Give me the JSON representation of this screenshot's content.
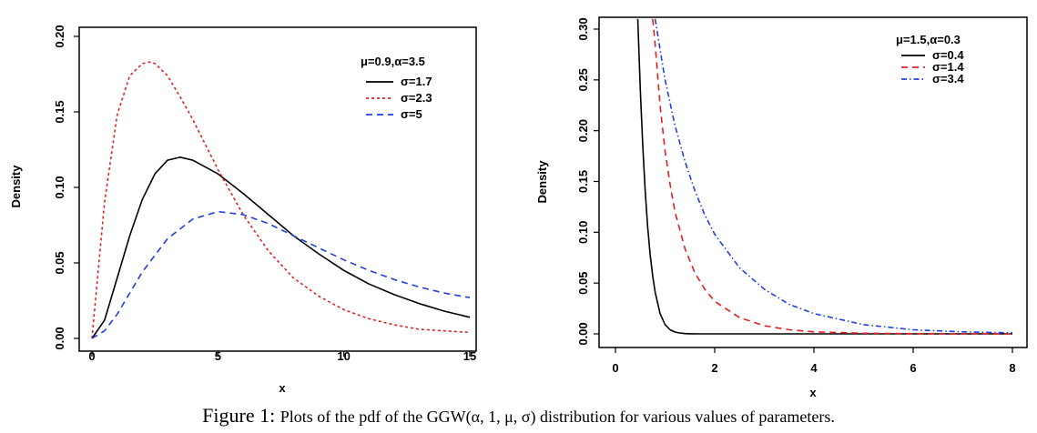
{
  "caption": {
    "prefix": "Figure 1:",
    "text": "Plots of the pdf of the GGW(α, 1, μ, σ) distribution for various values of parameters."
  },
  "chart_data": [
    {
      "type": "line",
      "xlabel": "x",
      "ylabel": "Density",
      "xlim": [
        0,
        15
      ],
      "ylim": [
        0,
        0.2
      ],
      "xticks": [
        "0",
        "5",
        "10",
        "15"
      ],
      "yticks": [
        "0.00",
        "0.05",
        "0.10",
        "0.15",
        "0.20"
      ],
      "legend_title": "μ=0.9,α=3.5",
      "legend_position": "top-right",
      "series": [
        {
          "name": "σ=1.7",
          "color": "#000000",
          "style": "solid",
          "x": [
            0,
            0.5,
            1,
            1.5,
            2,
            2.5,
            3,
            3.5,
            4,
            5,
            6,
            7,
            8,
            9,
            10,
            11,
            12,
            13,
            14,
            15
          ],
          "y": [
            0,
            0.012,
            0.04,
            0.068,
            0.092,
            0.109,
            0.118,
            0.12,
            0.118,
            0.109,
            0.096,
            0.082,
            0.068,
            0.056,
            0.045,
            0.036,
            0.029,
            0.023,
            0.018,
            0.014
          ]
        },
        {
          "name": "σ=2.3",
          "color": "#e02020",
          "style": "dotted",
          "x": [
            0,
            0.5,
            1,
            1.5,
            2,
            2.3,
            2.5,
            3,
            3.5,
            4,
            5,
            6,
            7,
            8,
            9,
            10,
            11,
            12,
            13,
            14,
            15
          ],
          "y": [
            0,
            0.09,
            0.148,
            0.174,
            0.182,
            0.183,
            0.182,
            0.174,
            0.16,
            0.145,
            0.112,
            0.082,
            0.058,
            0.04,
            0.028,
            0.019,
            0.013,
            0.009,
            0.006,
            0.005,
            0.004
          ]
        },
        {
          "name": "σ=5",
          "color": "#2040e0",
          "style": "dashed",
          "x": [
            0,
            0.5,
            1,
            1.5,
            2,
            3,
            4,
            5,
            6,
            7,
            8,
            9,
            10,
            11,
            12,
            13,
            14,
            15
          ],
          "y": [
            0,
            0.005,
            0.016,
            0.03,
            0.044,
            0.066,
            0.079,
            0.084,
            0.082,
            0.076,
            0.068,
            0.06,
            0.052,
            0.045,
            0.039,
            0.034,
            0.03,
            0.027
          ]
        }
      ]
    },
    {
      "type": "line",
      "xlabel": "x",
      "ylabel": "Density",
      "xlim": [
        0,
        8
      ],
      "ylim": [
        0,
        0.3
      ],
      "xticks": [
        "0",
        "2",
        "4",
        "6",
        "8"
      ],
      "yticks": [
        "0.00",
        "0.05",
        "0.10",
        "0.15",
        "0.20",
        "0.25",
        "0.30"
      ],
      "legend_title": "μ=1.5,α=0.3",
      "legend_position": "top-right",
      "series": [
        {
          "name": "σ=0.4",
          "color": "#000000",
          "style": "solid",
          "x": [
            0.45,
            0.5,
            0.55,
            0.6,
            0.65,
            0.7,
            0.75,
            0.8,
            0.9,
            1.0,
            1.1,
            1.2,
            1.3,
            1.4,
            1.5,
            1.7,
            2,
            3,
            4,
            6,
            8
          ],
          "y": [
            0.31,
            0.24,
            0.185,
            0.14,
            0.105,
            0.078,
            0.057,
            0.041,
            0.02,
            0.009,
            0.004,
            0.0018,
            0.0008,
            0.0003,
            0.0001,
            0,
            0,
            0,
            0,
            0,
            0
          ]
        },
        {
          "name": "σ=1.4",
          "color": "#e02020",
          "style": "dashed",
          "x": [
            0.75,
            0.8,
            0.9,
            1.0,
            1.1,
            1.2,
            1.4,
            1.6,
            1.8,
            2,
            2.5,
            3,
            3.5,
            4,
            5,
            6,
            7,
            8
          ],
          "y": [
            0.31,
            0.285,
            0.225,
            0.18,
            0.147,
            0.12,
            0.084,
            0.06,
            0.044,
            0.032,
            0.016,
            0.008,
            0.004,
            0.002,
            0.0006,
            0.0002,
            0.0001,
            0
          ]
        },
        {
          "name": "σ=3.4",
          "color": "#2040e0",
          "style": "dashdot",
          "x": [
            0.8,
            0.9,
            1.0,
            1.2,
            1.4,
            1.6,
            1.8,
            2,
            2.5,
            3,
            3.5,
            4,
            5,
            6,
            7,
            8
          ],
          "y": [
            0.31,
            0.28,
            0.25,
            0.205,
            0.17,
            0.141,
            0.117,
            0.098,
            0.065,
            0.044,
            0.029,
            0.02,
            0.009,
            0.004,
            0.002,
            0.001
          ]
        }
      ]
    }
  ]
}
